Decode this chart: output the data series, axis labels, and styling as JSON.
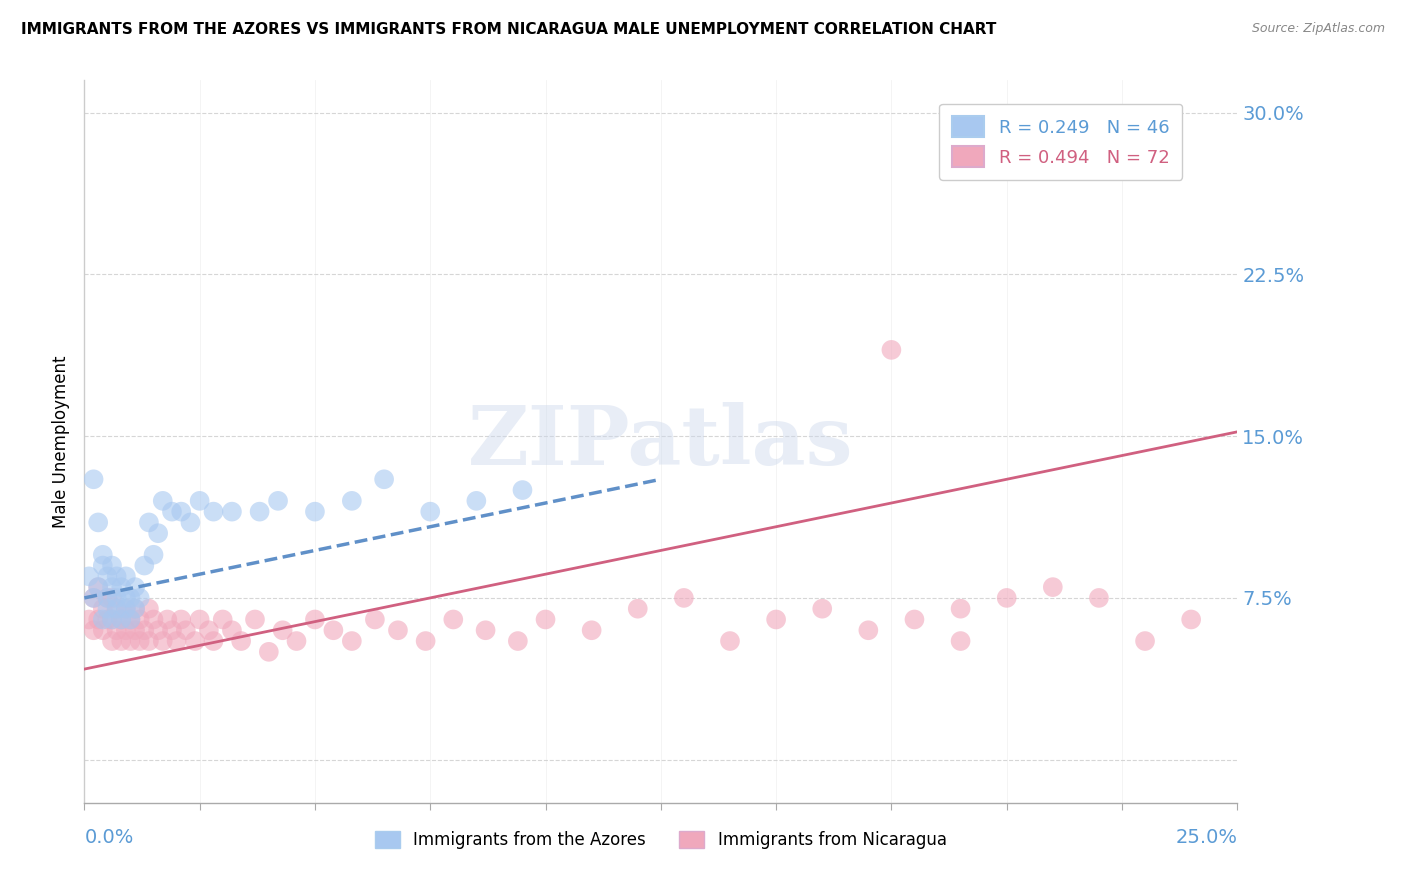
{
  "title": "IMMIGRANTS FROM THE AZORES VS IMMIGRANTS FROM NICARAGUA MALE UNEMPLOYMENT CORRELATION CHART",
  "source": "Source: ZipAtlas.com",
  "xlim": [
    0.0,
    0.25
  ],
  "ylim": [
    -0.02,
    0.315
  ],
  "ylabel_ticks": [
    0.0,
    0.075,
    0.15,
    0.225,
    0.3
  ],
  "ylabel_tick_labels": [
    "",
    "7.5%",
    "15.0%",
    "22.5%",
    "30.0%"
  ],
  "legend_azores": "R = 0.249   N = 46",
  "legend_nicaragua": "R = 0.494   N = 72",
  "legend_label_azores": "Immigrants from the Azores",
  "legend_label_nicaragua": "Immigrants from Nicaragua",
  "color_azores": "#a8c8f0",
  "color_nicaragua": "#f0a8bc",
  "trendline_azores_color": "#6090c8",
  "trendline_nicaragua_color": "#d06080",
  "watermark": "ZIPatlas",
  "azores_x": [
    0.001,
    0.002,
    0.002,
    0.003,
    0.003,
    0.004,
    0.004,
    0.004,
    0.005,
    0.005,
    0.005,
    0.006,
    0.006,
    0.006,
    0.007,
    0.007,
    0.007,
    0.008,
    0.008,
    0.009,
    0.009,
    0.009,
    0.01,
    0.01,
    0.011,
    0.011,
    0.012,
    0.013,
    0.014,
    0.015,
    0.016,
    0.017,
    0.019,
    0.021,
    0.023,
    0.025,
    0.028,
    0.032,
    0.038,
    0.042,
    0.05,
    0.058,
    0.065,
    0.075,
    0.085,
    0.095
  ],
  "azores_y": [
    0.085,
    0.075,
    0.13,
    0.08,
    0.11,
    0.065,
    0.09,
    0.095,
    0.07,
    0.085,
    0.075,
    0.065,
    0.08,
    0.09,
    0.07,
    0.075,
    0.085,
    0.065,
    0.08,
    0.07,
    0.075,
    0.085,
    0.065,
    0.075,
    0.07,
    0.08,
    0.075,
    0.09,
    0.11,
    0.095,
    0.105,
    0.12,
    0.115,
    0.115,
    0.11,
    0.12,
    0.115,
    0.115,
    0.115,
    0.12,
    0.115,
    0.12,
    0.13,
    0.115,
    0.12,
    0.125
  ],
  "azores_trendline_x": [
    0.0,
    0.125
  ],
  "azores_trendline_y": [
    0.075,
    0.13
  ],
  "nicaragua_x": [
    0.001,
    0.002,
    0.002,
    0.003,
    0.003,
    0.004,
    0.004,
    0.005,
    0.005,
    0.006,
    0.006,
    0.006,
    0.007,
    0.007,
    0.008,
    0.008,
    0.009,
    0.009,
    0.01,
    0.01,
    0.011,
    0.011,
    0.012,
    0.012,
    0.013,
    0.014,
    0.014,
    0.015,
    0.016,
    0.017,
    0.018,
    0.019,
    0.02,
    0.021,
    0.022,
    0.024,
    0.025,
    0.027,
    0.028,
    0.03,
    0.032,
    0.034,
    0.037,
    0.04,
    0.043,
    0.046,
    0.05,
    0.054,
    0.058,
    0.063,
    0.068,
    0.074,
    0.08,
    0.087,
    0.094,
    0.1,
    0.11,
    0.12,
    0.13,
    0.14,
    0.15,
    0.16,
    0.17,
    0.18,
    0.19,
    0.2,
    0.21,
    0.22,
    0.175,
    0.19,
    0.23,
    0.24
  ],
  "nicaragua_y": [
    0.065,
    0.06,
    0.075,
    0.065,
    0.08,
    0.06,
    0.07,
    0.065,
    0.075,
    0.055,
    0.065,
    0.075,
    0.06,
    0.07,
    0.055,
    0.065,
    0.06,
    0.07,
    0.055,
    0.065,
    0.06,
    0.07,
    0.055,
    0.065,
    0.06,
    0.055,
    0.07,
    0.065,
    0.06,
    0.055,
    0.065,
    0.06,
    0.055,
    0.065,
    0.06,
    0.055,
    0.065,
    0.06,
    0.055,
    0.065,
    0.06,
    0.055,
    0.065,
    0.05,
    0.06,
    0.055,
    0.065,
    0.06,
    0.055,
    0.065,
    0.06,
    0.055,
    0.065,
    0.06,
    0.055,
    0.065,
    0.06,
    0.07,
    0.075,
    0.055,
    0.065,
    0.07,
    0.06,
    0.065,
    0.07,
    0.075,
    0.08,
    0.075,
    0.19,
    0.055,
    0.055,
    0.065
  ],
  "nicaragua_trendline_x": [
    0.0,
    0.25
  ],
  "nicaragua_trendline_y": [
    0.042,
    0.152
  ]
}
